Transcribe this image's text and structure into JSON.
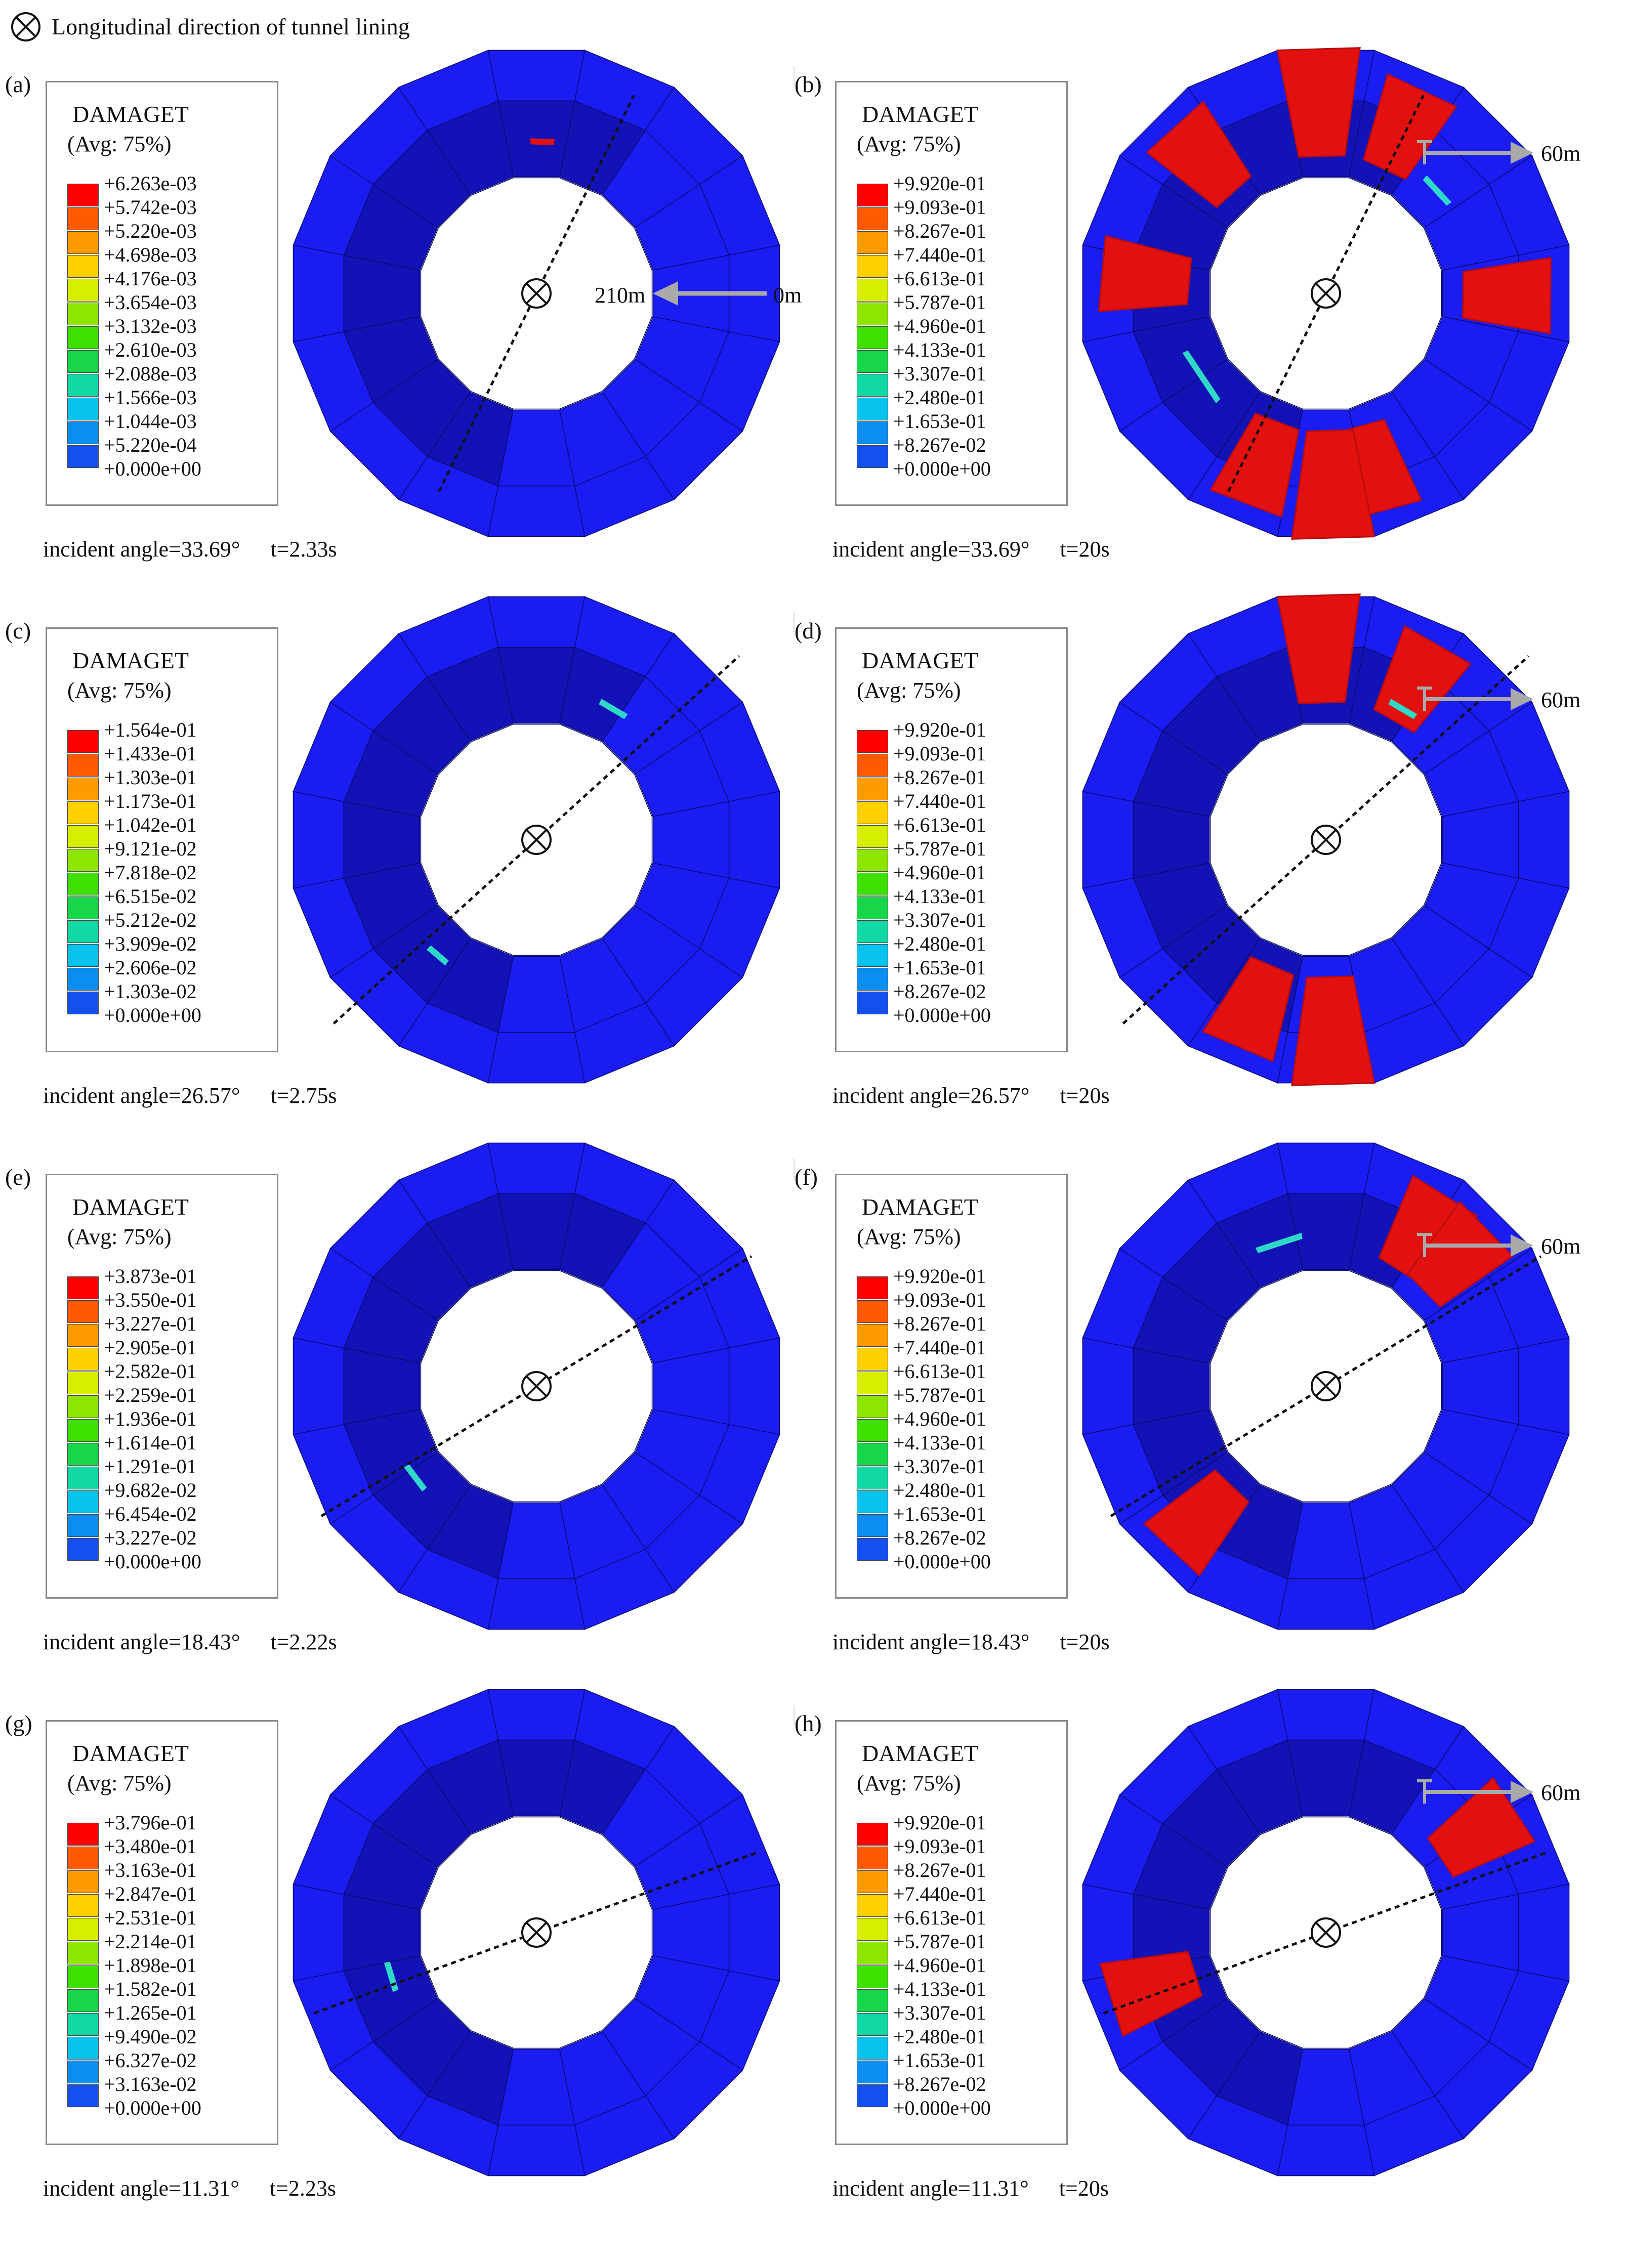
{
  "header": {
    "symbol": "circled-x-icon",
    "text": "Longitudinal direction of tunnel lining"
  },
  "legend_title": "DAMAGET",
  "legend_subtitle": "(Avg: 75%)",
  "colorbar": [
    "#ff0000",
    "#ff5a00",
    "#ff9a00",
    "#ffd000",
    "#d7ee00",
    "#8ee600",
    "#3ee000",
    "#17d64a",
    "#12d8a6",
    "#08c2ee",
    "#0a8ef2",
    "#1450ee",
    "#0000ff"
  ],
  "colors": {
    "lining": "#1a1cf2",
    "lining_dark": "#1212b6",
    "damage": "#e31010",
    "damage_dark": "#b90c0c",
    "crack": "#30d8c8",
    "arrow": "#a9a9a9"
  },
  "panels": [
    {
      "id": "a",
      "label": "(a)",
      "angle_text": "incident angle=33.69°",
      "time_text": "t=2.33s",
      "legend_values": [
        "+6.263e-03",
        "+5.742e-03",
        "+5.220e-03",
        "+4.698e-03",
        "+4.176e-03",
        "+3.654e-03",
        "+3.132e-03",
        "+2.610e-03",
        "+2.088e-03",
        "+1.566e-03",
        "+1.044e-03",
        "+5.220e-04",
        "+0.000e+00"
      ],
      "incident_angle_deg": 33.69,
      "distance_labels": [
        "210m",
        "0m"
      ],
      "damage_level": 0.006
    },
    {
      "id": "b",
      "label": "(b)",
      "angle_text": "incident angle=33.69°",
      "time_text": "t=20s",
      "legend_values": [
        "+9.920e-01",
        "+9.093e-01",
        "+8.267e-01",
        "+7.440e-01",
        "+6.613e-01",
        "+5.787e-01",
        "+4.960e-01",
        "+4.133e-01",
        "+3.307e-01",
        "+2.480e-01",
        "+1.653e-01",
        "+8.267e-02",
        "+0.000e+00"
      ],
      "incident_angle_deg": 33.69,
      "distance_labels": [
        "60m"
      ],
      "damage_level": 0.992
    },
    {
      "id": "c",
      "label": "(c)",
      "angle_text": "incident angle=26.57°",
      "time_text": "t=2.75s",
      "legend_values": [
        "+1.564e-01",
        "+1.433e-01",
        "+1.303e-01",
        "+1.173e-01",
        "+1.042e-01",
        "+9.121e-02",
        "+7.818e-02",
        "+6.515e-02",
        "+5.212e-02",
        "+3.909e-02",
        "+2.606e-02",
        "+1.303e-02",
        "+0.000e+00"
      ],
      "incident_angle_deg": 26.57,
      "distance_labels": [],
      "damage_level": 0.156
    },
    {
      "id": "d",
      "label": "(d)",
      "angle_text": "incident angle=26.57°",
      "time_text": "t=20s",
      "legend_values": [
        "+9.920e-01",
        "+9.093e-01",
        "+8.267e-01",
        "+7.440e-01",
        "+6.613e-01",
        "+5.787e-01",
        "+4.960e-01",
        "+4.133e-01",
        "+3.307e-01",
        "+2.480e-01",
        "+1.653e-01",
        "+8.267e-02",
        "+0.000e+00"
      ],
      "incident_angle_deg": 26.57,
      "distance_labels": [
        "60m"
      ],
      "damage_level": 0.992
    },
    {
      "id": "e",
      "label": "(e)",
      "angle_text": "incident angle=18.43°",
      "time_text": "t=2.22s",
      "legend_values": [
        "+3.873e-01",
        "+3.550e-01",
        "+3.227e-01",
        "+2.905e-01",
        "+2.582e-01",
        "+2.259e-01",
        "+1.936e-01",
        "+1.614e-01",
        "+1.291e-01",
        "+9.682e-02",
        "+6.454e-02",
        "+3.227e-02",
        "+0.000e+00"
      ],
      "incident_angle_deg": 18.43,
      "distance_labels": [],
      "damage_level": 0.387
    },
    {
      "id": "f",
      "label": "(f)",
      "angle_text": "incident angle=18.43°",
      "time_text": "t=20s",
      "legend_values": [
        "+9.920e-01",
        "+9.093e-01",
        "+8.267e-01",
        "+7.440e-01",
        "+6.613e-01",
        "+5.787e-01",
        "+4.960e-01",
        "+4.133e-01",
        "+3.307e-01",
        "+2.480e-01",
        "+1.653e-01",
        "+8.267e-02",
        "+0.000e+00"
      ],
      "incident_angle_deg": 18.43,
      "distance_labels": [
        "60m"
      ],
      "damage_level": 0.992
    },
    {
      "id": "g",
      "label": "(g)",
      "angle_text": "incident angle=11.31°",
      "time_text": "t=2.23s",
      "legend_values": [
        "+3.796e-01",
        "+3.480e-01",
        "+3.163e-01",
        "+2.847e-01",
        "+2.531e-01",
        "+2.214e-01",
        "+1.898e-01",
        "+1.582e-01",
        "+1.265e-01",
        "+9.490e-02",
        "+6.327e-02",
        "+3.163e-02",
        "+0.000e+00"
      ],
      "incident_angle_deg": 11.31,
      "distance_labels": [],
      "damage_level": 0.38
    },
    {
      "id": "h",
      "label": "(h)",
      "angle_text": "incident angle=11.31°",
      "time_text": "t=20s",
      "legend_values": [
        "+9.920e-01",
        "+9.093e-01",
        "+8.267e-01",
        "+7.440e-01",
        "+6.613e-01",
        "+5.787e-01",
        "+4.960e-01",
        "+4.133e-01",
        "+3.307e-01",
        "+2.480e-01",
        "+1.653e-01",
        "+8.267e-02",
        "+0.000e+00"
      ],
      "incident_angle_deg": 11.31,
      "distance_labels": [
        "60m"
      ],
      "damage_level": 0.992
    }
  ]
}
